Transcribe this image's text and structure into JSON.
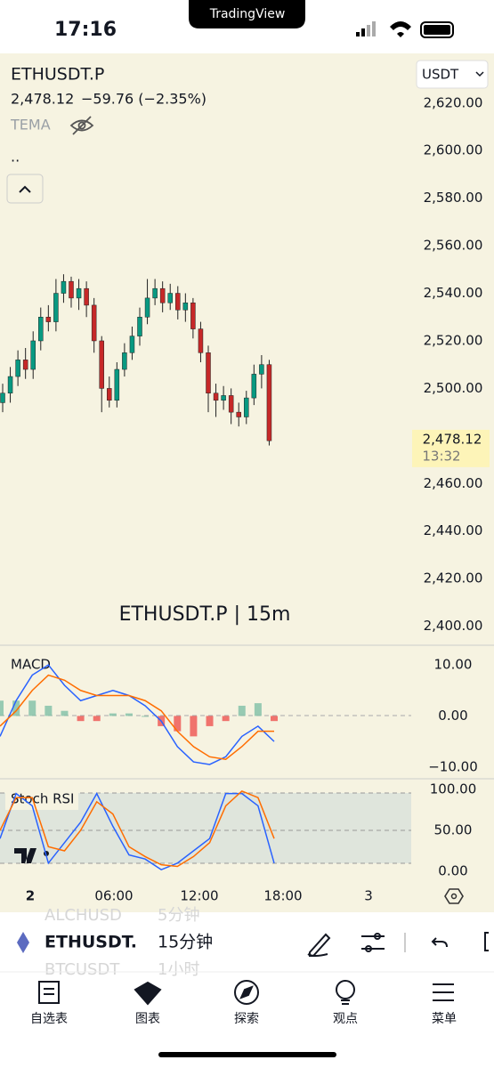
{
  "status_bar": {
    "time": "17:16",
    "app_badge": "TradingView"
  },
  "header": {
    "symbol": "ETHUSDT.P",
    "price": "2,478.12",
    "change": "−59.76 (−2.35%)",
    "indicator": "TEMA",
    "dots": "..",
    "currency": "USDT"
  },
  "chart_data": [
    {
      "type": "candlestick",
      "watermark": "ETHUSDT.P | 15m",
      "colors": [
        "#089981",
        "#c62828"
      ],
      "open": [
        2494,
        2498,
        2505,
        2512,
        2508,
        2520,
        2530,
        2528,
        2540,
        2545,
        2538,
        2542,
        2535,
        2520,
        2500,
        2495,
        2508,
        2515,
        2522,
        2530,
        2538,
        2542,
        2536,
        2540,
        2533,
        2536,
        2525,
        2515,
        2498,
        2495,
        2497,
        2490,
        2488,
        2496,
        2506,
        2510
      ],
      "high": [
        2502,
        2509,
        2516,
        2517,
        2524,
        2534,
        2535,
        2546,
        2548,
        2547,
        2546,
        2545,
        2538,
        2522,
        2505,
        2511,
        2519,
        2526,
        2534,
        2546,
        2546,
        2545,
        2544,
        2543,
        2540,
        2538,
        2528,
        2518,
        2502,
        2501,
        2500,
        2494,
        2499,
        2510,
        2514,
        2512
      ],
      "low": [
        2490,
        2494,
        2501,
        2504,
        2504,
        2516,
        2524,
        2524,
        2536,
        2534,
        2533,
        2530,
        2515,
        2490,
        2492,
        2492,
        2505,
        2512,
        2518,
        2527,
        2535,
        2532,
        2533,
        2529,
        2528,
        2521,
        2511,
        2490,
        2488,
        2491,
        2485,
        2484,
        2485,
        2493,
        2500,
        2476
      ],
      "close": [
        2498,
        2505,
        2512,
        2508,
        2520,
        2530,
        2528,
        2540,
        2545,
        2538,
        2542,
        2535,
        2520,
        2500,
        2495,
        2508,
        2515,
        2522,
        2530,
        2538,
        2542,
        2536,
        2540,
        2533,
        2536,
        2525,
        2515,
        2498,
        2495,
        2497,
        2490,
        2488,
        2496,
        2506,
        2510,
        2478
      ],
      "ylim": [
        2392,
        2639
      ],
      "yticks": [
        {
          "value": 2400,
          "label": "2,400.00"
        },
        {
          "value": 2420,
          "label": "2,420.00"
        },
        {
          "value": 2440,
          "label": "2,440.00"
        },
        {
          "value": 2460,
          "label": "2,460.00"
        },
        {
          "value": 2500,
          "label": "2,500.00"
        },
        {
          "value": 2520,
          "label": "2,520.00"
        },
        {
          "value": 2540,
          "label": "2,540.00"
        },
        {
          "value": 2560,
          "label": "2,560.00"
        },
        {
          "value": 2580,
          "label": "2,580.00"
        },
        {
          "value": 2600,
          "label": "2,600.00"
        },
        {
          "value": 2620,
          "label": "2,620.00"
        }
      ],
      "last_price": {
        "value": 2478.12,
        "label": "2,478.12"
      },
      "countdown": "13:32"
    },
    {
      "type": "line",
      "title": "MACD",
      "series": [
        {
          "type": "bar",
          "colors": [
            "#7fbfa6",
            "#ef5350"
          ],
          "values": [
            3,
            3,
            3,
            2,
            1,
            -1,
            -1,
            0.5,
            0.5,
            0,
            -2,
            -3,
            -4,
            -2,
            -1,
            2,
            2.5,
            -1
          ]
        },
        {
          "color": "#2962ff",
          "values": [
            -4,
            3,
            8,
            10,
            6,
            3,
            4,
            5,
            4,
            2,
            -1,
            -6,
            -9,
            -9.5,
            -8,
            -4,
            -2,
            -5
          ]
        },
        {
          "color": "#ff6d00",
          "values": [
            -2,
            1,
            5,
            8,
            7,
            5,
            4,
            4,
            4,
            3,
            1,
            -3,
            -6,
            -8,
            -8.5,
            -6,
            -3,
            -3
          ]
        }
      ],
      "ylim": [
        -12.3,
        13.5
      ],
      "yticks": [
        {
          "value": 10,
          "label": "10.00"
        },
        {
          "value": 0,
          "label": "0.00"
        },
        {
          "value": -10,
          "label": "−10.00"
        }
      ]
    },
    {
      "type": "line",
      "title": "Stoch RSI",
      "series": [
        {
          "color": "#2962ff",
          "values": [
            40,
            95,
            80,
            10,
            35,
            60,
            95,
            55,
            20,
            15,
            2,
            10,
            25,
            40,
            95,
            95,
            80,
            10
          ]
        },
        {
          "color": "#ff6d00",
          "values": [
            50,
            90,
            90,
            30,
            25,
            50,
            85,
            70,
            30,
            18,
            8,
            6,
            18,
            35,
            80,
            98,
            90,
            40
          ]
        }
      ],
      "ylim": [
        -17.4,
        110.9
      ],
      "yticks": [
        {
          "value": 100,
          "label": "100.00"
        },
        {
          "value": 50,
          "label": "50.00"
        },
        {
          "value": 0,
          "label": "0.00"
        }
      ]
    }
  ],
  "time_axis": [
    "2",
    "06:00",
    "12:00",
    "18:00",
    "3"
  ],
  "toolbar": {
    "symbol": "ETHUSDT.",
    "interval": "15分钟",
    "ghost": [
      "ALCHUSD",
      "5分钟",
      "BTCUSDT",
      "1小时"
    ]
  },
  "tabs": [
    "自选表",
    "图表",
    "探索",
    "观点",
    "菜单"
  ]
}
